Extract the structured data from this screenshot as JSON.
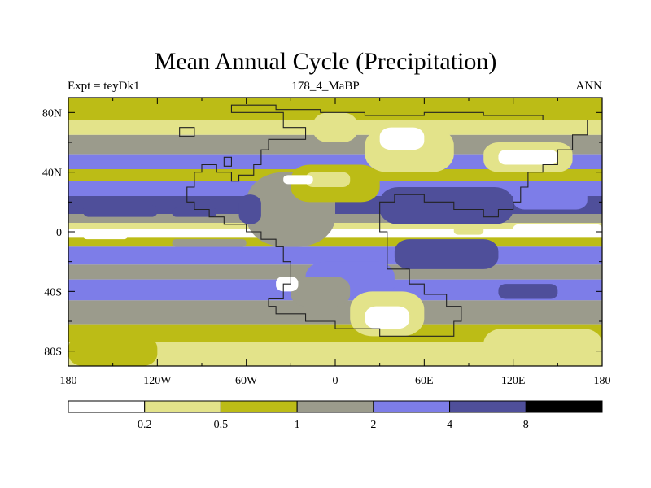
{
  "chart_data": {
    "type": "heatmap",
    "title": "Mean Annual Cycle (Precipitation)",
    "subtitle_left": "Expt = teyDk1",
    "subtitle_center": "178_4_MaBP",
    "subtitle_right": "ANN",
    "x_range": [
      -180,
      180
    ],
    "y_range": [
      -90,
      90
    ],
    "x_ticks": [
      {
        "value": -180,
        "label": "180"
      },
      {
        "value": -120,
        "label": "120W"
      },
      {
        "value": -60,
        "label": "60W"
      },
      {
        "value": 0,
        "label": "0"
      },
      {
        "value": 60,
        "label": "60E"
      },
      {
        "value": 120,
        "label": "120E"
      },
      {
        "value": 180,
        "label": "180"
      }
    ],
    "y_ticks": [
      {
        "value": 80,
        "label": "80N"
      },
      {
        "value": 40,
        "label": "40N"
      },
      {
        "value": 0,
        "label": "0"
      },
      {
        "value": -40,
        "label": "40S"
      },
      {
        "value": -80,
        "label": "80S"
      }
    ],
    "colorbar": {
      "levels": [
        "0.2",
        "0.5",
        "1",
        "2",
        "4",
        "8"
      ],
      "colors": [
        "#ffffff",
        "#e3e38a",
        "#bcbc16",
        "#9b9b8c",
        "#7d7de8",
        "#4f4f9a",
        "#000000"
      ]
    },
    "zonal_bands": [
      {
        "lat_from": 90,
        "lat_to": 75,
        "class": 2
      },
      {
        "lat_from": 75,
        "lat_to": 65,
        "class": 1
      },
      {
        "lat_from": 65,
        "lat_to": 52,
        "class": 3
      },
      {
        "lat_from": 52,
        "lat_to": 42,
        "class": 4
      },
      {
        "lat_from": 42,
        "lat_to": 34,
        "class": 2
      },
      {
        "lat_from": 34,
        "lat_to": 24,
        "class": 4
      },
      {
        "lat_from": 24,
        "lat_to": 12,
        "class": 5
      },
      {
        "lat_from": 12,
        "lat_to": 6,
        "class": 3
      },
      {
        "lat_from": 6,
        "lat_to": 2,
        "class": 1
      },
      {
        "lat_from": 2,
        "lat_to": -4,
        "class": 0
      },
      {
        "lat_from": -4,
        "lat_to": -10,
        "class": 2
      },
      {
        "lat_from": -10,
        "lat_to": -22,
        "class": 4
      },
      {
        "lat_from": -22,
        "lat_to": -32,
        "class": 3
      },
      {
        "lat_from": -32,
        "lat_to": -46,
        "class": 4
      },
      {
        "lat_from": -46,
        "lat_to": -62,
        "class": 3
      },
      {
        "lat_from": -62,
        "lat_to": -74,
        "class": 2
      },
      {
        "lat_from": -74,
        "lat_to": -90,
        "class": 1
      }
    ],
    "patches": [
      {
        "lon": [
          -60,
          0
        ],
        "lat": [
          -10,
          40
        ],
        "class": 3
      },
      {
        "lon": [
          -30,
          30
        ],
        "lat": [
          20,
          45
        ],
        "class": 2
      },
      {
        "lon": [
          -20,
          10
        ],
        "lat": [
          30,
          40
        ],
        "class": 1
      },
      {
        "lon": [
          -35,
          -15
        ],
        "lat": [
          32,
          38
        ],
        "class": 0
      },
      {
        "lon": [
          -15,
          15
        ],
        "lat": [
          60,
          80
        ],
        "class": 1
      },
      {
        "lon": [
          20,
          80
        ],
        "lat": [
          40,
          70
        ],
        "class": 1
      },
      {
        "lon": [
          30,
          60
        ],
        "lat": [
          55,
          70
        ],
        "class": 0
      },
      {
        "lon": [
          100,
          160
        ],
        "lat": [
          40,
          60
        ],
        "class": 1
      },
      {
        "lon": [
          110,
          150
        ],
        "lat": [
          45,
          55
        ],
        "class": 0
      },
      {
        "lon": [
          30,
          120
        ],
        "lat": [
          5,
          30
        ],
        "class": 5
      },
      {
        "lon": [
          120,
          170
        ],
        "lat": [
          15,
          30
        ],
        "class": 4
      },
      {
        "lon": [
          -65,
          -50
        ],
        "lat": [
          5,
          25
        ],
        "class": 5
      },
      {
        "lon": [
          40,
          110
        ],
        "lat": [
          -25,
          -5
        ],
        "class": 5
      },
      {
        "lon": [
          120,
          180
        ],
        "lat": [
          -2,
          5
        ],
        "class": 0
      },
      {
        "lon": [
          -20,
          40
        ],
        "lat": [
          -45,
          -20
        ],
        "class": 4
      },
      {
        "lon": [
          -30,
          10
        ],
        "lat": [
          -50,
          -30
        ],
        "class": 3
      },
      {
        "lon": [
          -40,
          -25
        ],
        "lat": [
          -40,
          -30
        ],
        "class": 0
      },
      {
        "lon": [
          10,
          60
        ],
        "lat": [
          -70,
          -40
        ],
        "class": 1
      },
      {
        "lon": [
          20,
          50
        ],
        "lat": [
          -65,
          -50
        ],
        "class": 0
      },
      {
        "lon": [
          100,
          180
        ],
        "lat": [
          -90,
          -65
        ],
        "class": 1
      },
      {
        "lon": [
          -180,
          -120
        ],
        "lat": [
          -90,
          -70
        ],
        "class": 2
      },
      {
        "lon": [
          110,
          150
        ],
        "lat": [
          -45,
          -35
        ],
        "class": 5
      },
      {
        "lon": [
          -110,
          -80
        ],
        "lat": [
          10,
          16
        ],
        "class": 5
      },
      {
        "lon": [
          -170,
          -120
        ],
        "lat": [
          10,
          18
        ],
        "class": 5
      },
      {
        "lon": [
          -110,
          -60
        ],
        "lat": [
          -10,
          -5
        ],
        "class": 3
      },
      {
        "lon": [
          80,
          100
        ],
        "lat": [
          -2,
          4
        ],
        "class": 1
      },
      {
        "lon": [
          -170,
          -140
        ],
        "lat": [
          -5,
          0
        ],
        "class": 0
      }
    ],
    "coastline": [
      [
        [
          -70,
          80
        ],
        [
          -35,
          80
        ],
        [
          -35,
          70
        ],
        [
          -20,
          70
        ],
        [
          -20,
          62
        ],
        [
          -40,
          62
        ],
        [
          -45,
          55
        ],
        [
          -50,
          45
        ],
        [
          -55,
          38
        ],
        [
          -65,
          34
        ],
        [
          -70,
          40
        ],
        [
          -80,
          45
        ],
        [
          -90,
          40
        ],
        [
          -95,
          30
        ],
        [
          -100,
          20
        ],
        [
          -95,
          15
        ],
        [
          -85,
          10
        ],
        [
          -75,
          5
        ],
        [
          -60,
          0
        ],
        [
          -50,
          -5
        ],
        [
          -40,
          -10
        ],
        [
          -35,
          -20
        ],
        [
          -30,
          -35
        ],
        [
          -35,
          -45
        ],
        [
          -45,
          -50
        ],
        [
          -40,
          -55
        ],
        [
          -20,
          -60
        ],
        [
          0,
          -65
        ],
        [
          30,
          -70
        ],
        [
          60,
          -70
        ],
        [
          80,
          -60
        ],
        [
          85,
          -50
        ],
        [
          75,
          -42
        ],
        [
          60,
          -35
        ],
        [
          50,
          -25
        ],
        [
          35,
          -20
        ],
        [
          35,
          0
        ],
        [
          30,
          10
        ],
        [
          30,
          20
        ],
        [
          40,
          25
        ],
        [
          60,
          20
        ],
        [
          80,
          15
        ],
        [
          100,
          10
        ],
        [
          110,
          15
        ],
        [
          120,
          20
        ],
        [
          125,
          30
        ],
        [
          130,
          40
        ],
        [
          140,
          45
        ],
        [
          150,
          55
        ],
        [
          160,
          65
        ],
        [
          170,
          75
        ],
        [
          140,
          78
        ],
        [
          100,
          80
        ],
        [
          60,
          78
        ],
        [
          20,
          80
        ],
        [
          -10,
          82
        ],
        [
          -40,
          85
        ],
        [
          -70,
          80
        ]
      ]
    ],
    "small_islands": [
      [
        [
          -75,
          50
        ],
        [
          -70,
          50
        ],
        [
          -70,
          44
        ],
        [
          -75,
          44
        ]
      ],
      [
        [
          -105,
          70
        ],
        [
          -95,
          70
        ],
        [
          -95,
          64
        ],
        [
          -105,
          64
        ]
      ]
    ]
  }
}
